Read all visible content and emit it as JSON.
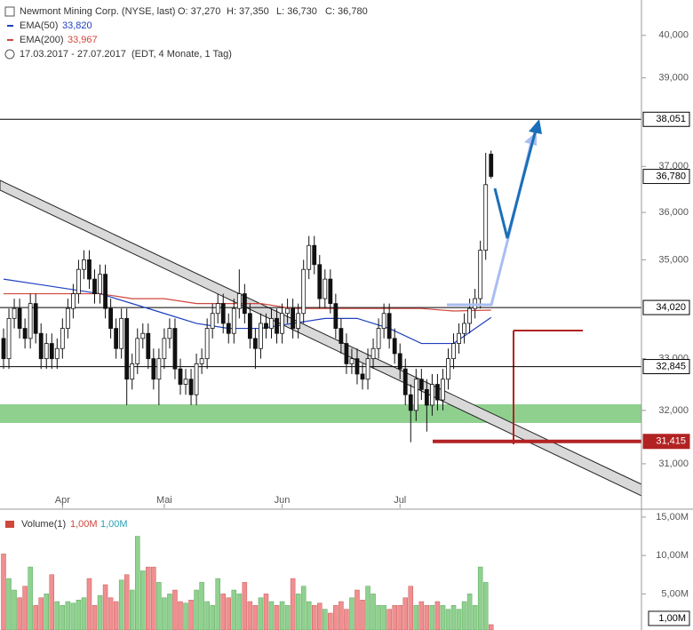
{
  "header": {
    "title": "Newmont Mining Corp. (NYSE, last)",
    "ohlc": [
      "O: 37,270",
      "H: 37,350",
      "L: 36,730",
      "C: 36,780"
    ],
    "indicators": [
      {
        "name": "EMA(50)",
        "value": "33,820",
        "color": "#1f3fbf"
      },
      {
        "name": "EMA(200)",
        "value": "33,967",
        "color": "#d0473c"
      }
    ],
    "period": "17.03.2017 - 27.07.2017",
    "period_note": "(EDT, 4 Monate, 1 Tag)"
  },
  "chart_data": [
    {
      "type": "candlestick",
      "log": true,
      "ylim": [
        30.19,
        40.85
      ],
      "yticks": [
        {
          "value": 31,
          "label": "31,000"
        },
        {
          "value": 32,
          "label": "32,000"
        },
        {
          "value": 33,
          "label": "33,000"
        },
        {
          "value": 35,
          "label": "35,000"
        },
        {
          "value": 36,
          "label": "36,000"
        },
        {
          "value": 37,
          "label": "37,000"
        },
        {
          "value": 39,
          "label": "39,000"
        },
        {
          "value": 40,
          "label": "40,000"
        }
      ],
      "categories": [
        null,
        null,
        null,
        null,
        null,
        null,
        null,
        null,
        null,
        null,
        null,
        "Apr",
        null,
        null,
        null,
        null,
        null,
        null,
        null,
        null,
        null,
        null,
        null,
        null,
        null,
        null,
        null,
        null,
        null,
        null,
        "Mai",
        null,
        null,
        null,
        null,
        null,
        null,
        null,
        null,
        null,
        null,
        null,
        null,
        null,
        null,
        null,
        null,
        null,
        null,
        null,
        null,
        null,
        "Jun",
        null,
        null,
        null,
        null,
        null,
        null,
        null,
        null,
        null,
        null,
        null,
        null,
        null,
        null,
        null,
        null,
        null,
        null,
        null,
        null,
        null,
        "Jul",
        null,
        null,
        null,
        null,
        null,
        null,
        null,
        null,
        null,
        null,
        null,
        null,
        null,
        null,
        null,
        null,
        null
      ],
      "open": [
        33.4,
        33.0,
        33.8,
        34.0,
        33.6,
        33.4,
        34.1,
        33.5,
        33.0,
        33.3,
        33.0,
        33.2,
        33.6,
        34.0,
        34.3,
        34.8,
        35.0,
        34.6,
        34.3,
        34.7,
        34.0,
        33.6,
        33.2,
        33.8,
        32.6,
        32.9,
        33.4,
        33.5,
        33.0,
        32.6,
        33.0,
        33.4,
        33.6,
        32.8,
        32.5,
        32.6,
        32.3,
        32.9,
        33.0,
        33.6,
        33.9,
        34.1,
        33.7,
        33.5,
        34.0,
        34.3,
        33.9,
        33.4,
        33.2,
        33.7,
        33.6,
        33.8,
        33.5,
        33.9,
        34.0,
        33.6,
        33.9,
        34.8,
        35.3,
        34.9,
        34.2,
        34.6,
        34.1,
        33.6,
        33.3,
        32.9,
        33.0,
        32.7,
        32.6,
        33.0,
        33.2,
        33.6,
        33.9,
        33.4,
        33.1,
        32.8,
        32.3,
        32.0,
        32.6,
        32.4,
        32.1,
        32.5,
        32.2,
        32.6,
        33.0,
        33.3,
        33.5,
        33.7,
        34.0,
        34.2,
        35.2,
        37.27
      ],
      "high": [
        33.6,
        34.0,
        34.2,
        34.2,
        33.8,
        34.3,
        34.3,
        33.7,
        33.5,
        33.5,
        33.4,
        33.8,
        34.2,
        34.5,
        35.0,
        35.2,
        35.2,
        34.8,
        34.9,
        34.9,
        34.2,
        33.8,
        34.0,
        34.0,
        33.1,
        33.6,
        33.7,
        33.7,
        33.2,
        33.2,
        33.6,
        33.8,
        33.8,
        33.0,
        32.8,
        32.8,
        33.1,
        33.2,
        33.8,
        34.1,
        34.3,
        34.3,
        33.9,
        34.2,
        34.8,
        34.5,
        34.1,
        33.6,
        33.9,
        33.9,
        34.0,
        34.0,
        34.1,
        34.2,
        34.2,
        34.1,
        35.0,
        35.5,
        35.5,
        35.1,
        34.8,
        34.8,
        34.3,
        33.8,
        33.5,
        33.2,
        33.2,
        32.9,
        33.2,
        33.4,
        33.8,
        34.1,
        34.1,
        33.6,
        33.3,
        33.0,
        32.5,
        32.8,
        32.8,
        32.6,
        32.7,
        32.7,
        32.8,
        33.2,
        33.5,
        33.7,
        33.9,
        34.2,
        34.4,
        35.4,
        37.3,
        37.35
      ],
      "low": [
        32.8,
        32.8,
        33.6,
        33.4,
        33.2,
        33.2,
        33.3,
        32.8,
        32.8,
        32.8,
        32.8,
        33.0,
        33.4,
        33.8,
        34.1,
        34.6,
        34.4,
        34.1,
        34.1,
        33.8,
        33.4,
        33.0,
        33.0,
        32.1,
        32.4,
        32.7,
        33.2,
        32.8,
        32.4,
        32.1,
        32.8,
        33.2,
        32.6,
        32.3,
        32.3,
        32.1,
        32.1,
        32.7,
        32.8,
        33.4,
        33.7,
        33.5,
        33.3,
        33.3,
        33.8,
        33.7,
        33.2,
        32.8,
        33.0,
        33.4,
        33.4,
        33.3,
        33.3,
        33.7,
        33.4,
        33.4,
        33.7,
        34.6,
        34.7,
        34.0,
        34.0,
        33.9,
        33.4,
        33.1,
        32.7,
        32.7,
        32.5,
        32.4,
        32.4,
        32.8,
        33.0,
        33.4,
        33.2,
        32.9,
        32.6,
        32.1,
        31.4,
        31.8,
        32.2,
        31.6,
        31.9,
        32.0,
        32.0,
        32.4,
        32.8,
        33.1,
        33.3,
        33.5,
        33.8,
        34.0,
        35.0,
        36.73
      ],
      "close": [
        33.0,
        33.8,
        34.0,
        33.6,
        33.4,
        34.1,
        33.5,
        33.0,
        33.3,
        33.0,
        33.2,
        33.6,
        34.0,
        34.3,
        34.8,
        35.0,
        34.6,
        34.3,
        34.7,
        34.0,
        33.6,
        33.2,
        33.8,
        32.6,
        32.9,
        33.4,
        33.5,
        33.0,
        32.6,
        33.0,
        33.4,
        33.6,
        32.8,
        32.5,
        32.6,
        32.3,
        32.9,
        33.0,
        33.6,
        33.9,
        34.1,
        33.7,
        33.5,
        34.0,
        34.3,
        33.9,
        33.4,
        33.2,
        33.7,
        33.6,
        33.8,
        33.5,
        33.9,
        34.0,
        33.6,
        33.9,
        34.8,
        35.3,
        34.9,
        34.2,
        34.6,
        34.1,
        33.6,
        33.3,
        32.9,
        33.0,
        32.7,
        32.6,
        33.0,
        33.2,
        33.6,
        33.9,
        33.4,
        33.1,
        32.8,
        32.3,
        32.0,
        32.6,
        32.4,
        32.1,
        32.5,
        32.2,
        32.6,
        33.0,
        33.3,
        33.5,
        33.7,
        34.0,
        34.2,
        35.2,
        36.6,
        36.78
      ],
      "candle_colors": {
        "up": "#ffffff",
        "down": "#111111"
      },
      "last_label": "36,780",
      "lines": [
        {
          "name": "EMA(50)",
          "color": "#1f3fbf",
          "x": [
            0,
            6,
            12,
            18,
            24,
            30,
            36,
            42,
            48,
            54,
            60,
            66,
            72,
            78,
            84,
            91
          ],
          "values": [
            34.6,
            34.5,
            34.4,
            34.3,
            34.1,
            33.9,
            33.7,
            33.6,
            33.6,
            33.7,
            33.8,
            33.8,
            33.6,
            33.3,
            33.3,
            33.82
          ]
        },
        {
          "name": "EMA(200)",
          "color": "#d0473c",
          "x": [
            0,
            6,
            12,
            18,
            24,
            30,
            36,
            42,
            48,
            54,
            60,
            66,
            72,
            78,
            84,
            91
          ],
          "values": [
            34.3,
            34.3,
            34.3,
            34.3,
            34.2,
            34.2,
            34.1,
            34.1,
            34.1,
            34.0,
            34.0,
            34.0,
            34.0,
            34.0,
            33.95,
            33.967
          ]
        }
      ],
      "levels": [
        {
          "value": 38.051,
          "label": "38,051",
          "color": "#000000"
        },
        {
          "value": 34.02,
          "label": "34,020",
          "color": "#000000"
        },
        {
          "value": 32.845,
          "label": "32,845",
          "color": "#000000"
        },
        {
          "value": 31.415,
          "label": "31,415",
          "color": "#b22222"
        }
      ]
    },
    {
      "type": "bar",
      "title": "Volume(1)",
      "legend_values": [
        {
          "text": "1,00M",
          "color": "#d0473c"
        },
        {
          "text": "1,00M",
          "color": "#2a9fb8"
        }
      ],
      "ylim": [
        0.3,
        15.8
      ],
      "yticks": [
        {
          "value": 5,
          "label": "5,00M"
        },
        {
          "value": 10,
          "label": "10,00M"
        },
        {
          "value": 15,
          "label": "15,00M"
        }
      ],
      "colors": {
        "up": "#8fd18f",
        "down": "#f08f8f"
      },
      "values": [
        10.2,
        7.0,
        5.5,
        4.5,
        6.0,
        8.5,
        3.5,
        4.5,
        5.0,
        7.5,
        4.0,
        3.5,
        4.0,
        3.8,
        4.2,
        4.5,
        7.0,
        3.5,
        4.8,
        6.2,
        4.5,
        4.0,
        6.8,
        7.5,
        5.5,
        12.5,
        8.0,
        8.5,
        8.5,
        6.5,
        4.5,
        5.0,
        5.5,
        4.0,
        3.8,
        4.2,
        5.5,
        6.5,
        4.0,
        3.5,
        7.0,
        5.0,
        4.5,
        5.5,
        5.0,
        6.5,
        4.0,
        3.5,
        4.5,
        5.0,
        4.0,
        3.5,
        4.0,
        3.5,
        7.0,
        5.0,
        6.0,
        4.0,
        3.5,
        3.8,
        3.0,
        2.5,
        3.5,
        4.0,
        3.0,
        4.5,
        5.5,
        4.2,
        6.0,
        5.0,
        3.5,
        3.5,
        3.0,
        3.5,
        3.5,
        4.5,
        6.0,
        3.5,
        4.0,
        3.5,
        3.5,
        4.0,
        3.5,
        3.0,
        3.5,
        3.0,
        4.0,
        5.0,
        3.5,
        8.5,
        6.5,
        1.0
      ],
      "last_label": "1,00M"
    }
  ]
}
